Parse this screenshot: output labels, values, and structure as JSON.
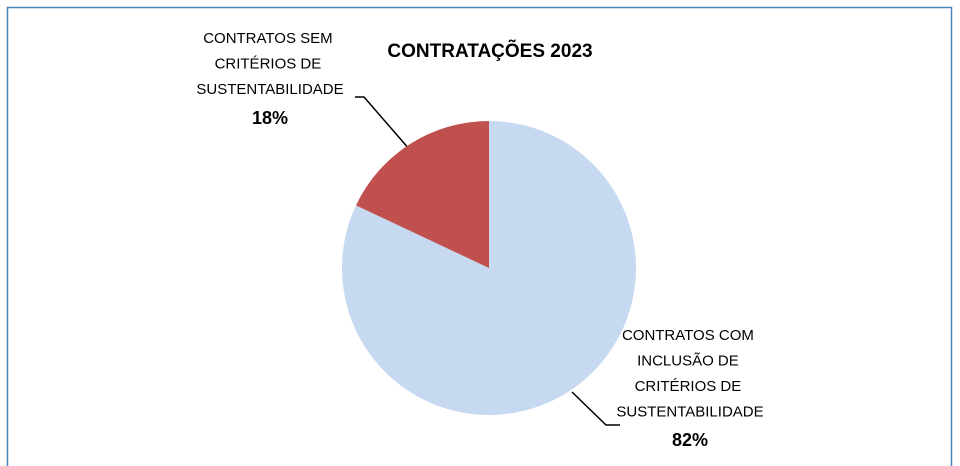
{
  "chart_data": {
    "type": "pie",
    "title": "CONTRATAÇÕES 2023",
    "categories": [
      "CONTRATOS COM INCLUSÃO DE CRITÉRIOS DE SUSTENTABILIDADE",
      "CONTRATOS SEM CRITÉRIOS DE SUSTENTABILIDADE"
    ],
    "values": [
      82,
      18
    ],
    "value_labels": [
      "82%",
      "18%"
    ],
    "colors": [
      "#c6d9f1",
      "#c0504d"
    ]
  }
}
